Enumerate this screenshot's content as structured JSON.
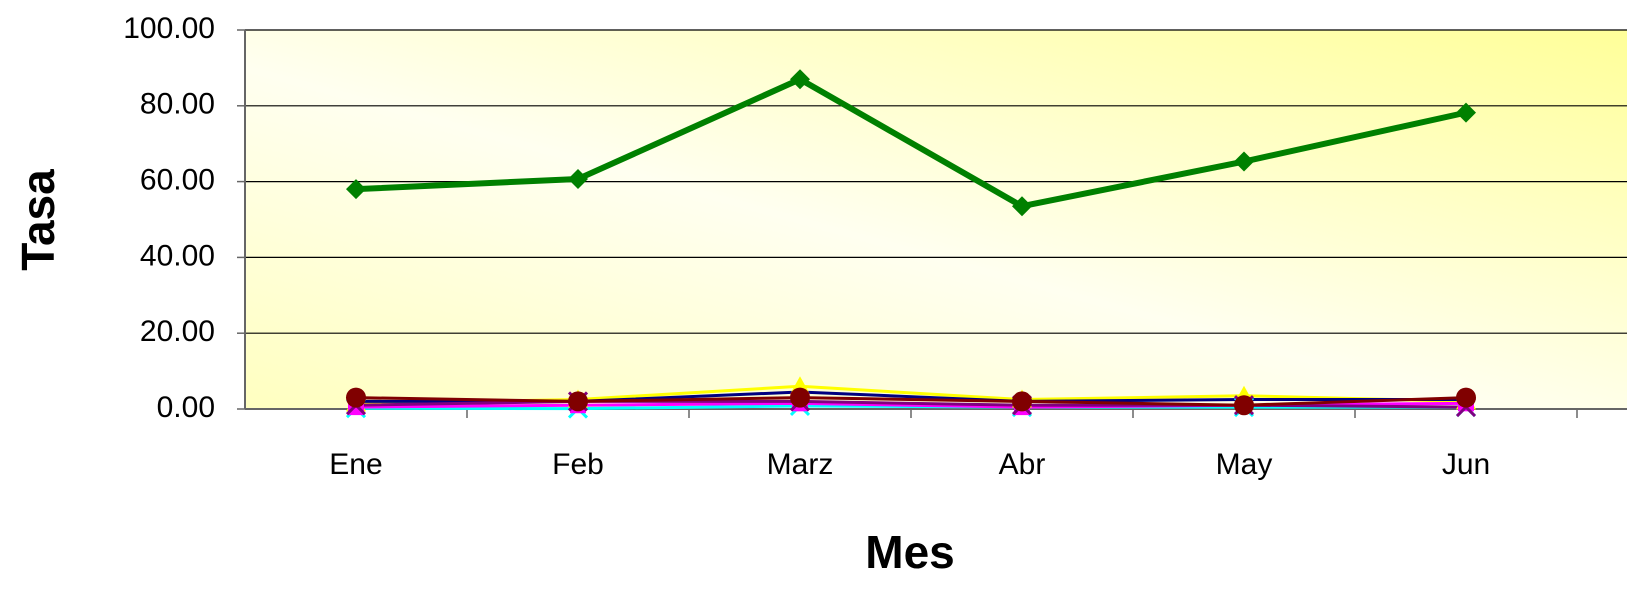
{
  "chart_data": {
    "type": "line",
    "x_label": "Mes",
    "y_label": "Tasa",
    "categories": [
      "Ene",
      "Feb",
      "Marz",
      "Abr",
      "May",
      "Jun"
    ],
    "ylim": [
      0,
      100
    ],
    "yticks": [
      {
        "value": 0,
        "label": "0.00"
      },
      {
        "value": 20,
        "label": "20.00"
      },
      {
        "value": 40,
        "label": "40.00"
      },
      {
        "value": 60,
        "label": "60.00"
      },
      {
        "value": 80,
        "label": "80.00"
      },
      {
        "value": 100,
        "label": "100.00"
      }
    ],
    "grid": true,
    "series": [
      {
        "color": "#008000",
        "marker": "diamond",
        "values": [
          58,
          60.7,
          87,
          53.5,
          65.3,
          78.2
        ]
      },
      {
        "color": "#ffff00",
        "marker": "triangle",
        "values": [
          1.5,
          2.5,
          6,
          2.5,
          3.5,
          2
        ]
      },
      {
        "color": "#000080",
        "marker": "none",
        "values": [
          2,
          2,
          4.5,
          2,
          2.5,
          2.5
        ]
      },
      {
        "color": "#00ffff",
        "marker": "x",
        "values": [
          0.2,
          0.1,
          0.8,
          0.5,
          0.5,
          0.5
        ]
      },
      {
        "color": "#ff00ff",
        "marker": "square",
        "values": [
          0.5,
          1,
          1.5,
          0.5,
          1,
          1.5
        ]
      },
      {
        "color": "#800080",
        "marker": "x",
        "values": [
          1,
          2,
          2,
          1,
          1,
          0.5
        ]
      },
      {
        "color": "#800000",
        "marker": "circle",
        "values": [
          3,
          2,
          3,
          2,
          1,
          3
        ]
      }
    ]
  }
}
